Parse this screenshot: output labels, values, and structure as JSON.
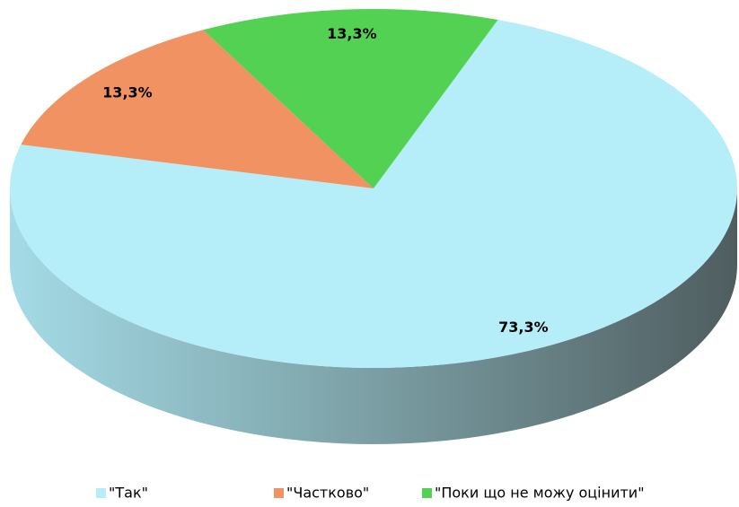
{
  "chart_data": {
    "type": "pie",
    "categories": [
      "\"Так\"",
      "\"Частково\"",
      "\"Поки що не можу оцінити\""
    ],
    "values": [
      73.3,
      13.3,
      13.3
    ],
    "value_labels": [
      "73,3%",
      "13,3%",
      "13,3%"
    ],
    "colors": [
      "#b5eef9",
      "#f09262",
      "#52d152"
    ]
  }
}
